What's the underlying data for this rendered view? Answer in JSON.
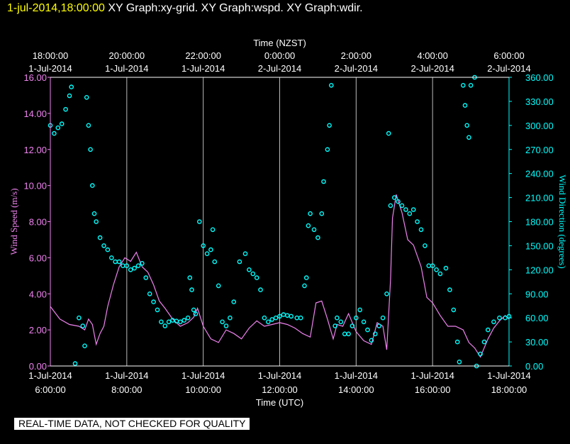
{
  "header": {
    "timestamp": "1-jul-2014,18:00:00",
    "titles": "XY Graph:xy-grid.  XY Graph:wspd.  XY Graph:wdir."
  },
  "footer_note": "REAL-TIME DATA, NOT CHECKED FOR QUALITY",
  "colors": {
    "background": "#000000",
    "axis": "#ffffff",
    "grid": "#bbbbbb",
    "wind_speed": "#ee82ee",
    "wind_direction": "#00ffff",
    "header_timestamp": "#ffff00"
  },
  "chart_data": {
    "type": "scatter",
    "top_axis": {
      "label": "Time (NZST)",
      "ticks": [
        {
          "time": "18:00:00",
          "date": "1-Jul-2014"
        },
        {
          "time": "20:00:00",
          "date": "1-Jul-2014"
        },
        {
          "time": "22:00:00",
          "date": "1-Jul-2014"
        },
        {
          "time": "0:00:00",
          "date": "2-Jul-2014"
        },
        {
          "time": "2:00:00",
          "date": "2-Jul-2014"
        },
        {
          "time": "4:00:00",
          "date": "2-Jul-2014"
        },
        {
          "time": "6:00:00",
          "date": "2-Jul-2014"
        }
      ]
    },
    "bottom_axis": {
      "label": "Time (UTC)",
      "ticks": [
        {
          "date": "1-Jul-2014",
          "time": "6:00:00"
        },
        {
          "date": "1-Jul-2014",
          "time": "8:00:00"
        },
        {
          "date": "1-Jul-2014",
          "time": "10:00:00"
        },
        {
          "date": "1-Jul-2014",
          "time": "12:00:00"
        },
        {
          "date": "1-Jul-2014",
          "time": "14:00:00"
        },
        {
          "date": "1-Jul-2014",
          "time": "16:00:00"
        },
        {
          "date": "1-Jul-2014",
          "time": "18:00:00"
        }
      ],
      "xlim_utc_hours": [
        6,
        18
      ]
    },
    "left_axis": {
      "label": "Wind Speed (m/s)",
      "ylim": [
        0,
        16
      ],
      "ticks": [
        "0.00",
        "2.00",
        "4.00",
        "6.00",
        "8.00",
        "10.00",
        "12.00",
        "14.00",
        "16.00"
      ]
    },
    "right_axis": {
      "label": "Wind Direction (degrees)",
      "ylim": [
        0,
        360
      ],
      "ticks": [
        "0.00",
        "30.00",
        "60.00",
        "90.00",
        "120.00",
        "150.00",
        "180.00",
        "210.00",
        "240.00",
        "270.00",
        "300.00",
        "330.00",
        "360.00"
      ]
    },
    "grid": "vertical",
    "series": [
      {
        "key": "wspd",
        "style": "line",
        "points": [
          [
            6.0,
            3.3
          ],
          [
            6.25,
            2.6
          ],
          [
            6.5,
            2.3
          ],
          [
            6.75,
            2.2
          ],
          [
            6.9,
            2.0
          ],
          [
            7.0,
            2.6
          ],
          [
            7.1,
            2.3
          ],
          [
            7.2,
            1.2
          ],
          [
            7.3,
            1.8
          ],
          [
            7.4,
            2.2
          ],
          [
            7.5,
            3.3
          ],
          [
            7.65,
            4.5
          ],
          [
            7.8,
            5.5
          ],
          [
            7.95,
            6.0
          ],
          [
            8.1,
            5.8
          ],
          [
            8.25,
            6.3
          ],
          [
            8.4,
            5.5
          ],
          [
            8.55,
            5.2
          ],
          [
            8.7,
            4.5
          ],
          [
            8.85,
            3.6
          ],
          [
            9.0,
            3.2
          ],
          [
            9.2,
            2.6
          ],
          [
            9.4,
            2.2
          ],
          [
            9.6,
            2.4
          ],
          [
            9.75,
            2.7
          ],
          [
            9.85,
            3.2
          ],
          [
            10.0,
            2.2
          ],
          [
            10.2,
            1.5
          ],
          [
            10.4,
            1.3
          ],
          [
            10.6,
            2.0
          ],
          [
            10.8,
            1.8
          ],
          [
            11.0,
            1.5
          ],
          [
            11.2,
            2.1
          ],
          [
            11.4,
            2.5
          ],
          [
            11.6,
            2.2
          ],
          [
            11.8,
            2.3
          ],
          [
            12.0,
            2.4
          ],
          [
            12.2,
            2.3
          ],
          [
            12.4,
            2.1
          ],
          [
            12.6,
            1.8
          ],
          [
            12.8,
            1.6
          ],
          [
            12.95,
            3.5
          ],
          [
            13.1,
            3.6
          ],
          [
            13.25,
            2.6
          ],
          [
            13.4,
            1.5
          ],
          [
            13.5,
            2.3
          ],
          [
            13.65,
            2.2
          ],
          [
            13.8,
            2.9
          ],
          [
            14.0,
            1.9
          ],
          [
            14.2,
            1.4
          ],
          [
            14.4,
            1.2
          ],
          [
            14.55,
            2.4
          ],
          [
            14.7,
            2.2
          ],
          [
            14.8,
            0.9
          ],
          [
            14.9,
            4.8
          ],
          [
            14.95,
            8.2
          ],
          [
            15.05,
            9.5
          ],
          [
            15.2,
            8.5
          ],
          [
            15.35,
            7.0
          ],
          [
            15.5,
            6.7
          ],
          [
            15.7,
            5.5
          ],
          [
            15.85,
            3.8
          ],
          [
            16.0,
            3.5
          ],
          [
            16.2,
            2.8
          ],
          [
            16.4,
            2.2
          ],
          [
            16.6,
            2.2
          ],
          [
            16.8,
            2.0
          ],
          [
            16.95,
            1.3
          ],
          [
            17.1,
            1.0
          ],
          [
            17.25,
            0.5
          ],
          [
            17.45,
            1.5
          ],
          [
            17.6,
            2.1
          ],
          [
            17.75,
            2.5
          ],
          [
            17.9,
            2.8
          ],
          [
            18.0,
            2.6
          ]
        ]
      },
      {
        "key": "wdir",
        "style": "scatter",
        "points": [
          [
            6.0,
            300
          ],
          [
            6.1,
            290
          ],
          [
            6.2,
            297
          ],
          [
            6.3,
            302
          ],
          [
            6.4,
            320
          ],
          [
            6.5,
            337
          ],
          [
            6.55,
            348
          ],
          [
            6.65,
            3
          ],
          [
            6.75,
            60
          ],
          [
            6.85,
            50
          ],
          [
            6.9,
            25
          ],
          [
            6.95,
            335
          ],
          [
            7.0,
            300
          ],
          [
            7.05,
            270
          ],
          [
            7.1,
            225
          ],
          [
            7.15,
            190
          ],
          [
            7.2,
            180
          ],
          [
            7.3,
            160
          ],
          [
            7.4,
            150
          ],
          [
            7.5,
            145
          ],
          [
            7.6,
            135
          ],
          [
            7.7,
            130
          ],
          [
            7.8,
            130
          ],
          [
            7.9,
            125
          ],
          [
            8.0,
            125
          ],
          [
            8.1,
            120
          ],
          [
            8.2,
            122
          ],
          [
            8.3,
            125
          ],
          [
            8.4,
            128
          ],
          [
            8.5,
            110
          ],
          [
            8.6,
            90
          ],
          [
            8.7,
            80
          ],
          [
            8.8,
            70
          ],
          [
            8.9,
            55
          ],
          [
            9.0,
            50
          ],
          [
            9.1,
            55
          ],
          [
            9.2,
            57
          ],
          [
            9.3,
            56
          ],
          [
            9.4,
            55
          ],
          [
            9.5,
            57
          ],
          [
            9.6,
            60
          ],
          [
            9.65,
            110
          ],
          [
            9.7,
            95
          ],
          [
            9.75,
            70
          ],
          [
            9.8,
            65
          ],
          [
            9.9,
            180
          ],
          [
            10.0,
            150
          ],
          [
            10.1,
            140
          ],
          [
            10.2,
            145
          ],
          [
            10.25,
            170
          ],
          [
            10.3,
            130
          ],
          [
            10.4,
            100
          ],
          [
            10.5,
            55
          ],
          [
            10.6,
            50
          ],
          [
            10.7,
            60
          ],
          [
            10.8,
            80
          ],
          [
            10.95,
            130
          ],
          [
            11.1,
            140
          ],
          [
            11.2,
            120
          ],
          [
            11.3,
            115
          ],
          [
            11.4,
            110
          ],
          [
            11.5,
            95
          ],
          [
            11.6,
            60
          ],
          [
            11.7,
            55
          ],
          [
            11.8,
            58
          ],
          [
            11.9,
            60
          ],
          [
            12.0,
            62
          ],
          [
            12.1,
            64
          ],
          [
            12.2,
            63
          ],
          [
            12.3,
            62
          ],
          [
            12.45,
            60
          ],
          [
            12.55,
            60
          ],
          [
            12.65,
            100
          ],
          [
            12.7,
            110
          ],
          [
            12.75,
            175
          ],
          [
            12.8,
            190
          ],
          [
            12.9,
            170
          ],
          [
            13.0,
            160
          ],
          [
            13.1,
            190
          ],
          [
            13.15,
            230
          ],
          [
            13.25,
            270
          ],
          [
            13.3,
            300
          ],
          [
            13.35,
            350
          ],
          [
            13.45,
            50
          ],
          [
            13.5,
            60
          ],
          [
            13.6,
            55
          ],
          [
            13.7,
            40
          ],
          [
            13.8,
            40
          ],
          [
            13.9,
            50
          ],
          [
            14.0,
            60
          ],
          [
            14.1,
            70
          ],
          [
            14.2,
            55
          ],
          [
            14.3,
            45
          ],
          [
            14.4,
            32
          ],
          [
            14.5,
            40
          ],
          [
            14.6,
            50
          ],
          [
            14.7,
            60
          ],
          [
            14.8,
            90
          ],
          [
            14.85,
            290
          ],
          [
            14.9,
            200
          ],
          [
            15.0,
            210
          ],
          [
            15.1,
            205
          ],
          [
            15.2,
            200
          ],
          [
            15.3,
            195
          ],
          [
            15.4,
            190
          ],
          [
            15.5,
            195
          ],
          [
            15.6,
            180
          ],
          [
            15.7,
            170
          ],
          [
            15.8,
            150
          ],
          [
            15.9,
            125
          ],
          [
            16.0,
            125
          ],
          [
            16.1,
            120
          ],
          [
            16.2,
            115
          ],
          [
            16.35,
            122
          ],
          [
            16.45,
            95
          ],
          [
            16.55,
            70
          ],
          [
            16.65,
            30
          ],
          [
            16.7,
            5
          ],
          [
            16.8,
            350
          ],
          [
            16.85,
            325
          ],
          [
            16.9,
            300
          ],
          [
            16.95,
            285
          ],
          [
            17.0,
            350
          ],
          [
            17.1,
            360
          ],
          [
            17.15,
            0
          ],
          [
            17.25,
            15
          ],
          [
            17.35,
            30
          ],
          [
            17.45,
            45
          ],
          [
            17.6,
            55
          ],
          [
            17.75,
            60
          ],
          [
            17.9,
            60
          ],
          [
            18.0,
            62
          ]
        ]
      }
    ]
  }
}
